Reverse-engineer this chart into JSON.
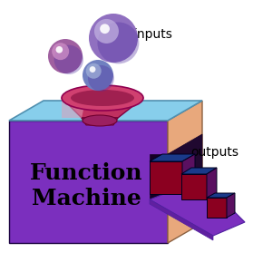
{
  "bg_color": "#ffffff",
  "box_front_color": "#7B2FBE",
  "box_side_color": "#E8A87C",
  "box_top_color": "#87CEEB",
  "cube_front_color": "#8B0020",
  "cube_top_color": "#1A3A8A",
  "cube_side_color": "#5A1060",
  "ramp_color": "#7B2FBE",
  "ramp_edge_color": "#5020A0",
  "slot_color": "#1a0030",
  "funnel_body_color": "#C03060",
  "funnel_neck_color": "#9B2060",
  "funnel_rim_color": "#D05080",
  "funnel_highlight": "#E8A0B0",
  "text_inputs": "inputs",
  "text_outputs": "outputs",
  "text_machine": "Function\nMachine",
  "inputs_fontsize": 10,
  "outputs_fontsize": 10,
  "machine_fontsize": 18
}
